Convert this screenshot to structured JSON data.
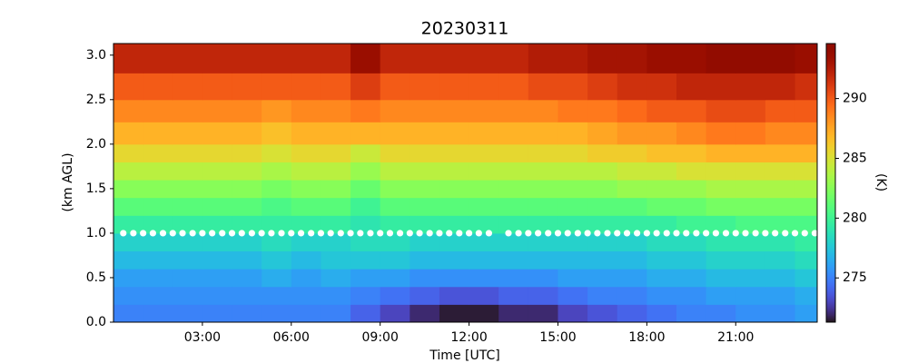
{
  "chart_data": {
    "type": "heatmap",
    "title": "20230311",
    "xlabel": "Time [UTC]",
    "ylabel": "(km AGL)",
    "xlim": [
      0,
      23.75
    ],
    "ylim": [
      0,
      3.13
    ],
    "xticks": [
      {
        "value": 3,
        "label": "03:00"
      },
      {
        "value": 6,
        "label": "06:00"
      },
      {
        "value": 9,
        "label": "09:00"
      },
      {
        "value": 12,
        "label": "12:00"
      },
      {
        "value": 15,
        "label": "15:00"
      },
      {
        "value": 18,
        "label": "18:00"
      },
      {
        "value": 21,
        "label": "21:00"
      }
    ],
    "yticks": [
      {
        "value": 0,
        "label": "0.0"
      },
      0.5,
      {
        "value": 1,
        "label": "1.0"
      },
      1.5,
      {
        "value": 2,
        "label": "2.0"
      },
      2.5,
      {
        "value": 3,
        "label": "3.0"
      }
    ],
    "x_edges": [
      0,
      1,
      2,
      3,
      4,
      5,
      6,
      7,
      8,
      9,
      10,
      11,
      12,
      13,
      14,
      15,
      16,
      17,
      18,
      19,
      20,
      21,
      22,
      23,
      23.75
    ],
    "y_edges": [
      0,
      0.2,
      0.4,
      0.6,
      0.8,
      1.0,
      1.2,
      1.4,
      1.6,
      1.8,
      2.0,
      2.25,
      2.5,
      2.8,
      3.13
    ],
    "z": [
      [
        275,
        275,
        275,
        275,
        275,
        275,
        275,
        275,
        274,
        273,
        272,
        271.5,
        271.5,
        272,
        272,
        273,
        273.5,
        274,
        274.5,
        275,
        275,
        275.5,
        275.5,
        276
      ],
      [
        275.5,
        275.5,
        275.5,
        275.5,
        275.5,
        275.5,
        275.5,
        275.5,
        275,
        274.5,
        274,
        273.5,
        273.5,
        274,
        274,
        274.5,
        275,
        275,
        275.5,
        275.5,
        276,
        276,
        276,
        276.5
      ],
      [
        276,
        276,
        276,
        276,
        276,
        276.5,
        276,
        276.5,
        276,
        276,
        275.5,
        275.5,
        275.5,
        275.5,
        275.5,
        276,
        276,
        276,
        276.5,
        276.5,
        277,
        277,
        277,
        277.5
      ],
      [
        277,
        277,
        277,
        277,
        277,
        277.5,
        277,
        277.5,
        277.5,
        277.5,
        277,
        277,
        277,
        277,
        277,
        277,
        277,
        277,
        277.5,
        277.5,
        278,
        278,
        278,
        278.5
      ],
      [
        278,
        278,
        278,
        278,
        278,
        278.5,
        278,
        278,
        278.5,
        278.5,
        278,
        278,
        278,
        278,
        278,
        278,
        278,
        278,
        278.5,
        278.5,
        279,
        279,
        279,
        279.5
      ],
      [
        279.5,
        279.5,
        279.5,
        279.5,
        279.5,
        279.5,
        279.5,
        279.5,
        279,
        279.5,
        279.5,
        279.5,
        279.5,
        279.5,
        279.5,
        279.5,
        279.5,
        279.5,
        279.5,
        280,
        280,
        280.5,
        280.5,
        280.5
      ],
      [
        281,
        281,
        281,
        281,
        281,
        280.5,
        281,
        281,
        280,
        281,
        281,
        281,
        281,
        281,
        281,
        281,
        281,
        281,
        281.5,
        281.5,
        282,
        282,
        282,
        282
      ],
      [
        282.5,
        282.5,
        282.5,
        282.5,
        282.5,
        282,
        282.5,
        282.5,
        281.5,
        282.5,
        282.5,
        282.5,
        282.5,
        282.5,
        282.5,
        282.5,
        282.5,
        283,
        283,
        283,
        283.5,
        283.5,
        283.5,
        283.5
      ],
      [
        284,
        284,
        284,
        284,
        284,
        283.5,
        284,
        284,
        283,
        284,
        284,
        284,
        284,
        284,
        284,
        284,
        284,
        284.5,
        284.5,
        285,
        285,
        285,
        285,
        285
      ],
      [
        285.5,
        285.5,
        285.5,
        285.5,
        285.5,
        285,
        285.5,
        285.5,
        284.5,
        285.5,
        285.5,
        285.5,
        285.5,
        285.5,
        285.5,
        285.5,
        286,
        286,
        286.5,
        286.5,
        287,
        287,
        287,
        287
      ],
      [
        287,
        287,
        287,
        287,
        287,
        286.5,
        287,
        287,
        287,
        287,
        287,
        287,
        287,
        287,
        287,
        287,
        287.5,
        288,
        288,
        288.5,
        289,
        289,
        288.5,
        288.5
      ],
      [
        288.5,
        288.5,
        288.5,
        288.5,
        288.5,
        288,
        288.5,
        288.5,
        289,
        288.5,
        288.5,
        288.5,
        288.5,
        288.5,
        288.5,
        289,
        289,
        289.5,
        290,
        290,
        290.5,
        290.5,
        290,
        290
      ],
      [
        290,
        290,
        290,
        290,
        290,
        290,
        290,
        290,
        291,
        290,
        290,
        290,
        290,
        290,
        290.5,
        290.5,
        291,
        291.5,
        291.5,
        292,
        292,
        292,
        292,
        291.5
      ],
      [
        292,
        292,
        292,
        292,
        292,
        292,
        292,
        292,
        293.5,
        292,
        292,
        292,
        292,
        292,
        292.5,
        292.5,
        293,
        293,
        293.5,
        293.5,
        294,
        294,
        294,
        293.5
      ]
    ],
    "colormap": "turbo",
    "colorbar": {
      "label": "(K)",
      "lim": [
        271.3,
        294.6
      ],
      "ticks": [
        275,
        280,
        285,
        290
      ]
    },
    "markers": {
      "color": "#ffffff",
      "x": [
        0.33,
        0.67,
        1,
        1.33,
        1.67,
        2,
        2.33,
        2.67,
        3,
        3.33,
        3.67,
        4,
        4.33,
        4.67,
        5,
        5.33,
        5.67,
        6,
        6.33,
        6.67,
        7,
        7.33,
        7.67,
        8,
        8.33,
        8.67,
        9,
        9.33,
        9.67,
        10,
        10.33,
        10.67,
        11,
        11.33,
        11.67,
        12,
        12.33,
        12.67,
        13.33,
        13.67,
        14,
        14.33,
        14.67,
        15,
        15.33,
        15.67,
        16,
        16.33,
        16.67,
        17,
        17.33,
        17.67,
        18,
        18.33,
        18.67,
        19,
        19.33,
        19.67,
        20,
        20.33,
        20.67,
        21,
        21.33,
        21.67,
        22,
        22.33,
        22.67,
        23,
        23.33,
        23.67
      ],
      "y": [
        1,
        1,
        1,
        1,
        1,
        1,
        1,
        1,
        1,
        1,
        1,
        1,
        1,
        1,
        1,
        1,
        1,
        1,
        1,
        1,
        1,
        1,
        1,
        1,
        1,
        1,
        1,
        1,
        1,
        1,
        1,
        1,
        1,
        1,
        1,
        1,
        1,
        1,
        1,
        1,
        1,
        1,
        1,
        1,
        1,
        1,
        1,
        1,
        1,
        1,
        1,
        1,
        1,
        1,
        1,
        1,
        1,
        1,
        1,
        1,
        1,
        1,
        1,
        1,
        1,
        1,
        1,
        1,
        1,
        1
      ]
    }
  }
}
